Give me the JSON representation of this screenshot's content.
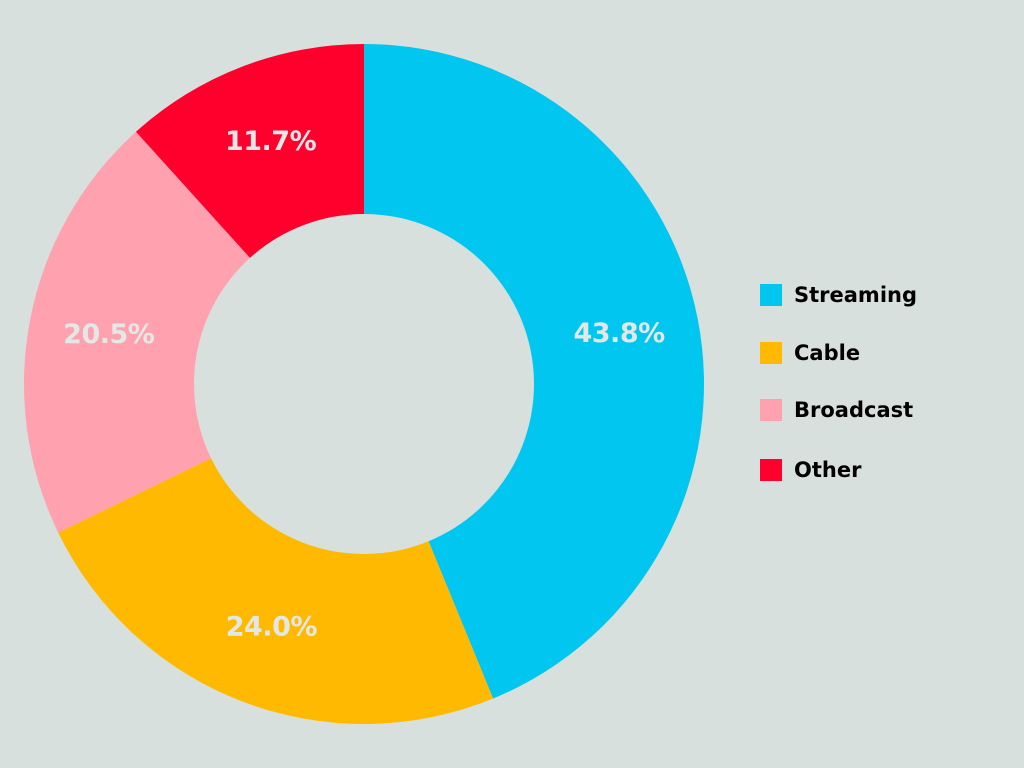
{
  "chart_data": {
    "type": "pie",
    "variant": "donut",
    "categories": [
      "Streaming",
      "Cable",
      "Broadcast",
      "Other"
    ],
    "values": [
      43.8,
      24.0,
      20.5,
      11.7
    ],
    "value_labels": [
      "43.8%",
      "24.0%",
      "20.5%",
      "11.7%"
    ],
    "colors": [
      "#00C6F0",
      "#FFB900",
      "#FFA1AE",
      "#FF002D"
    ],
    "title": "",
    "legend_position": "right",
    "background": "#D7E0DC",
    "label_color": "#E3E8E6"
  }
}
